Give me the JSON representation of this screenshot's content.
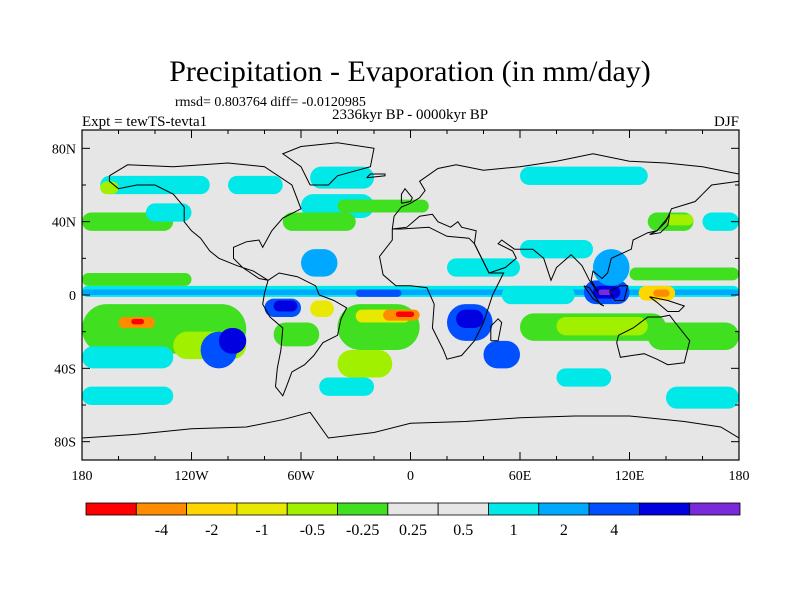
{
  "chart_data": {
    "type": "heatmap",
    "title": "Precipitation - Evaporation (in mm/day)",
    "stats_line": "rmsd= 0.803764 diff= -0.0120985",
    "left_label": "Expt = tewTS-tevta1",
    "center_label": "2336kyr BP - 0000kyr BP",
    "right_label": "DJF",
    "x_tick_labels": [
      "180",
      "120W",
      "60W",
      "0",
      "60E",
      "120E",
      "180"
    ],
    "x_tick_values": [
      -180,
      -120,
      -60,
      0,
      60,
      120,
      180
    ],
    "y_tick_labels": [
      "80N",
      "40N",
      "0",
      "40S",
      "80S"
    ],
    "y_tick_values": [
      80,
      40,
      0,
      -40,
      -80
    ],
    "xlim": [
      -180,
      180
    ],
    "ylim": [
      -90,
      90
    ],
    "colorbar": {
      "colors": [
        "#ff0000",
        "#ff8c00",
        "#ffd700",
        "#e8e800",
        "#a0f000",
        "#40e020",
        "#e6e6e6",
        "#e6e6e6",
        "#00e8e8",
        "#00a8ff",
        "#0050ff",
        "#0000e0",
        "#7a2ad8"
      ],
      "labels": [
        "-4",
        "-2",
        "-1",
        "-0.5",
        "-0.25",
        "0.25",
        "0.5",
        "1",
        "2",
        "4"
      ]
    },
    "background_color": "#e6e6e6",
    "regions": [
      {
        "level": 8,
        "lon": [
          -180,
          180
        ],
        "lat": [
          -1,
          5
        ]
      },
      {
        "level": 9,
        "lon": [
          -180,
          180
        ],
        "lat": [
          0,
          3
        ]
      },
      {
        "level": 10,
        "lon": [
          -30,
          -5
        ],
        "lat": [
          -1,
          3
        ]
      },
      {
        "level": 5,
        "lon": [
          -180,
          -120
        ],
        "lat": [
          5,
          12
        ]
      },
      {
        "level": 4,
        "lon": [
          -170,
          -130
        ],
        "lat": [
          -22,
          -8
        ]
      },
      {
        "level": 5,
        "lon": [
          -180,
          -90
        ],
        "lat": [
          -32,
          -5
        ]
      },
      {
        "level": 1,
        "lon": [
          -160,
          -140
        ],
        "lat": [
          -18,
          -12
        ]
      },
      {
        "level": 0,
        "lon": [
          -153,
          -146
        ],
        "lat": [
          -16,
          -13
        ]
      },
      {
        "level": 4,
        "lon": [
          -130,
          -90
        ],
        "lat": [
          -35,
          -20
        ]
      },
      {
        "level": 8,
        "lon": [
          -180,
          -130
        ],
        "lat": [
          -40,
          -28
        ]
      },
      {
        "level": 10,
        "lon": [
          -115,
          -95
        ],
        "lat": [
          -40,
          -20
        ]
      },
      {
        "level": 11,
        "lon": [
          -105,
          -90
        ],
        "lat": [
          -32,
          -18
        ]
      },
      {
        "level": 10,
        "lon": [
          -80,
          -60
        ],
        "lat": [
          -12,
          -2
        ]
      },
      {
        "level": 11,
        "lon": [
          -75,
          -62
        ],
        "lat": [
          -9,
          -3
        ]
      },
      {
        "level": 5,
        "lon": [
          -75,
          -50
        ],
        "lat": [
          -28,
          -15
        ]
      },
      {
        "level": 3,
        "lon": [
          -55,
          -42
        ],
        "lat": [
          -12,
          -3
        ]
      },
      {
        "level": 5,
        "lon": [
          -40,
          5
        ],
        "lat": [
          -30,
          -5
        ]
      },
      {
        "level": 3,
        "lon": [
          -30,
          0
        ],
        "lat": [
          -15,
          -8
        ]
      },
      {
        "level": 1,
        "lon": [
          -15,
          5
        ],
        "lat": [
          -14,
          -8
        ]
      },
      {
        "level": 0,
        "lon": [
          -8,
          2
        ],
        "lat": [
          -12,
          -9
        ]
      },
      {
        "level": 4,
        "lon": [
          -40,
          -10
        ],
        "lat": [
          -45,
          -30
        ]
      },
      {
        "level": 8,
        "lon": [
          -50,
          -20
        ],
        "lat": [
          -55,
          -45
        ]
      },
      {
        "level": 10,
        "lon": [
          20,
          45
        ],
        "lat": [
          -25,
          -5
        ]
      },
      {
        "level": 11,
        "lon": [
          25,
          40
        ],
        "lat": [
          -18,
          -8
        ]
      },
      {
        "level": 10,
        "lon": [
          40,
          60
        ],
        "lat": [
          -40,
          -25
        ]
      },
      {
        "level": 8,
        "lon": [
          50,
          90
        ],
        "lat": [
          -5,
          5
        ]
      },
      {
        "level": 5,
        "lon": [
          60,
          140
        ],
        "lat": [
          -25,
          -10
        ]
      },
      {
        "level": 4,
        "lon": [
          80,
          130
        ],
        "lat": [
          -22,
          -12
        ]
      },
      {
        "level": 5,
        "lon": [
          130,
          180
        ],
        "lat": [
          -30,
          -15
        ]
      },
      {
        "level": 10,
        "lon": [
          95,
          120
        ],
        "lat": [
          -5,
          8
        ]
      },
      {
        "level": 11,
        "lon": [
          100,
          115
        ],
        "lat": [
          -2,
          5
        ]
      },
      {
        "level": 12,
        "lon": [
          103,
          110
        ],
        "lat": [
          0,
          3
        ]
      },
      {
        "level": 2,
        "lon": [
          125,
          145
        ],
        "lat": [
          -3,
          5
        ]
      },
      {
        "level": 1,
        "lon": [
          133,
          142
        ],
        "lat": [
          -1,
          3
        ]
      },
      {
        "level": 5,
        "lon": [
          120,
          180
        ],
        "lat": [
          8,
          15
        ]
      },
      {
        "level": 9,
        "lon": [
          100,
          120
        ],
        "lat": [
          5,
          25
        ]
      },
      {
        "level": 5,
        "lon": [
          130,
          155
        ],
        "lat": [
          35,
          45
        ]
      },
      {
        "level": 4,
        "lon": [
          140,
          155
        ],
        "lat": [
          38,
          44
        ]
      },
      {
        "level": 8,
        "lon": [
          160,
          180
        ],
        "lat": [
          35,
          45
        ]
      },
      {
        "level": 5,
        "lon": [
          -180,
          -130
        ],
        "lat": [
          35,
          45
        ]
      },
      {
        "level": 8,
        "lon": [
          -145,
          -120
        ],
        "lat": [
          40,
          50
        ]
      },
      {
        "level": 8,
        "lon": [
          -60,
          -20
        ],
        "lat": [
          42,
          55
        ]
      },
      {
        "level": 5,
        "lon": [
          -70,
          -30
        ],
        "lat": [
          35,
          45
        ]
      },
      {
        "level": 5,
        "lon": [
          -40,
          10
        ],
        "lat": [
          45,
          52
        ]
      },
      {
        "level": 8,
        "lon": [
          -55,
          -20
        ],
        "lat": [
          58,
          70
        ]
      },
      {
        "level": 9,
        "lon": [
          -60,
          -40
        ],
        "lat": [
          10,
          25
        ]
      },
      {
        "level": 8,
        "lon": [
          20,
          60
        ],
        "lat": [
          10,
          20
        ]
      },
      {
        "level": 8,
        "lon": [
          60,
          100
        ],
        "lat": [
          20,
          30
        ]
      },
      {
        "level": 8,
        "lon": [
          -170,
          -110
        ],
        "lat": [
          55,
          65
        ]
      },
      {
        "level": 8,
        "lon": [
          -100,
          -70
        ],
        "lat": [
          55,
          65
        ]
      },
      {
        "level": 8,
        "lon": [
          60,
          130
        ],
        "lat": [
          60,
          70
        ]
      },
      {
        "level": 4,
        "lon": [
          -170,
          -160
        ],
        "lat": [
          55,
          62
        ]
      },
      {
        "level": 8,
        "lon": [
          -180,
          -130
        ],
        "lat": [
          -60,
          -50
        ]
      },
      {
        "level": 8,
        "lon": [
          140,
          180
        ],
        "lat": [
          -62,
          -50
        ]
      },
      {
        "level": 8,
        "lon": [
          80,
          110
        ],
        "lat": [
          -50,
          -40
        ]
      }
    ]
  }
}
